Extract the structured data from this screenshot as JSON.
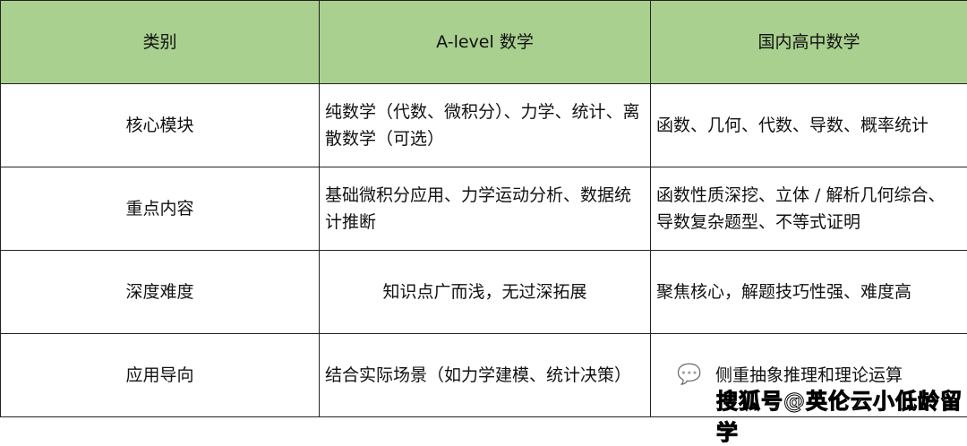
{
  "headers": [
    "类别",
    "A-level 数学",
    "国内高中数学"
  ],
  "rows": [
    {
      "category": "核心模块",
      "alevel": "纯数学（代数、微积分）、力学、统计、离散数学（可选）",
      "domestic": "函数、几何、代数、导数、概率统计"
    },
    {
      "category": "重点内容",
      "alevel": "基础微积分应用、力学运动分析、数据统计推断",
      "domestic": "函数性质深挖、立体 / 解析几何综合、导数复杂题型、不等式证明"
    },
    {
      "category": "深度难度",
      "alevel": "知识点广而浅，无过深拓展",
      "domestic": "聚焦核心，解题技巧性强、难度高"
    },
    {
      "category": "应用导向",
      "alevel": "结合实际场景（如力学建模、统计决策）",
      "domestic": "侧重抽象推理和理论运算"
    }
  ],
  "watermark": "搜狐号@英伦云小低龄留学",
  "header_color": "#a9d08e"
}
